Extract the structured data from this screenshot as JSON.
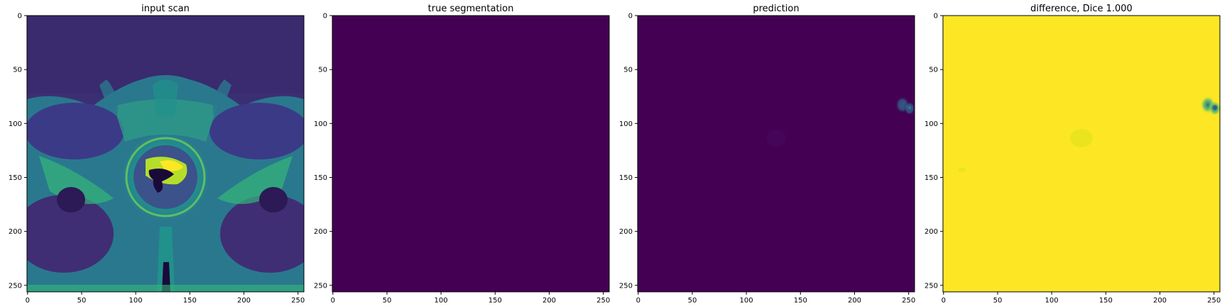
{
  "panels": [
    {
      "title": "input scan",
      "image": "axial MRI slice of pelvis with prostate region",
      "colormap": "viridis",
      "x_ticks": [
        "0",
        "50",
        "100",
        "150",
        "200",
        "250"
      ],
      "y_ticks": [
        "0",
        "50",
        "100",
        "150",
        "200",
        "250"
      ]
    },
    {
      "title": "true segmentation",
      "image": "uniform empty mask",
      "colormap": "viridis",
      "x_ticks": [
        "0",
        "50",
        "100",
        "150",
        "200",
        "250"
      ],
      "y_ticks": [
        "0",
        "50",
        "100",
        "150",
        "200",
        "250"
      ]
    },
    {
      "title": "prediction",
      "image": "near-empty predicted mask with small spots near right edge",
      "colormap": "viridis",
      "x_ticks": [
        "0",
        "50",
        "100",
        "150",
        "200",
        "250"
      ],
      "y_ticks": [
        "0",
        "50",
        "100",
        "150",
        "200",
        "250"
      ]
    },
    {
      "title": "difference, Dice 1.000",
      "image": "near-uniform difference map with small spots near right edge",
      "colormap": "viridis",
      "x_ticks": [
        "0",
        "50",
        "100",
        "150",
        "200",
        "250"
      ],
      "y_ticks": [
        "0",
        "50",
        "100",
        "150",
        "200",
        "250"
      ]
    }
  ],
  "colors": {
    "viridis_low": "#440154",
    "viridis_mid": "#21918c",
    "viridis_high": "#fde725"
  }
}
